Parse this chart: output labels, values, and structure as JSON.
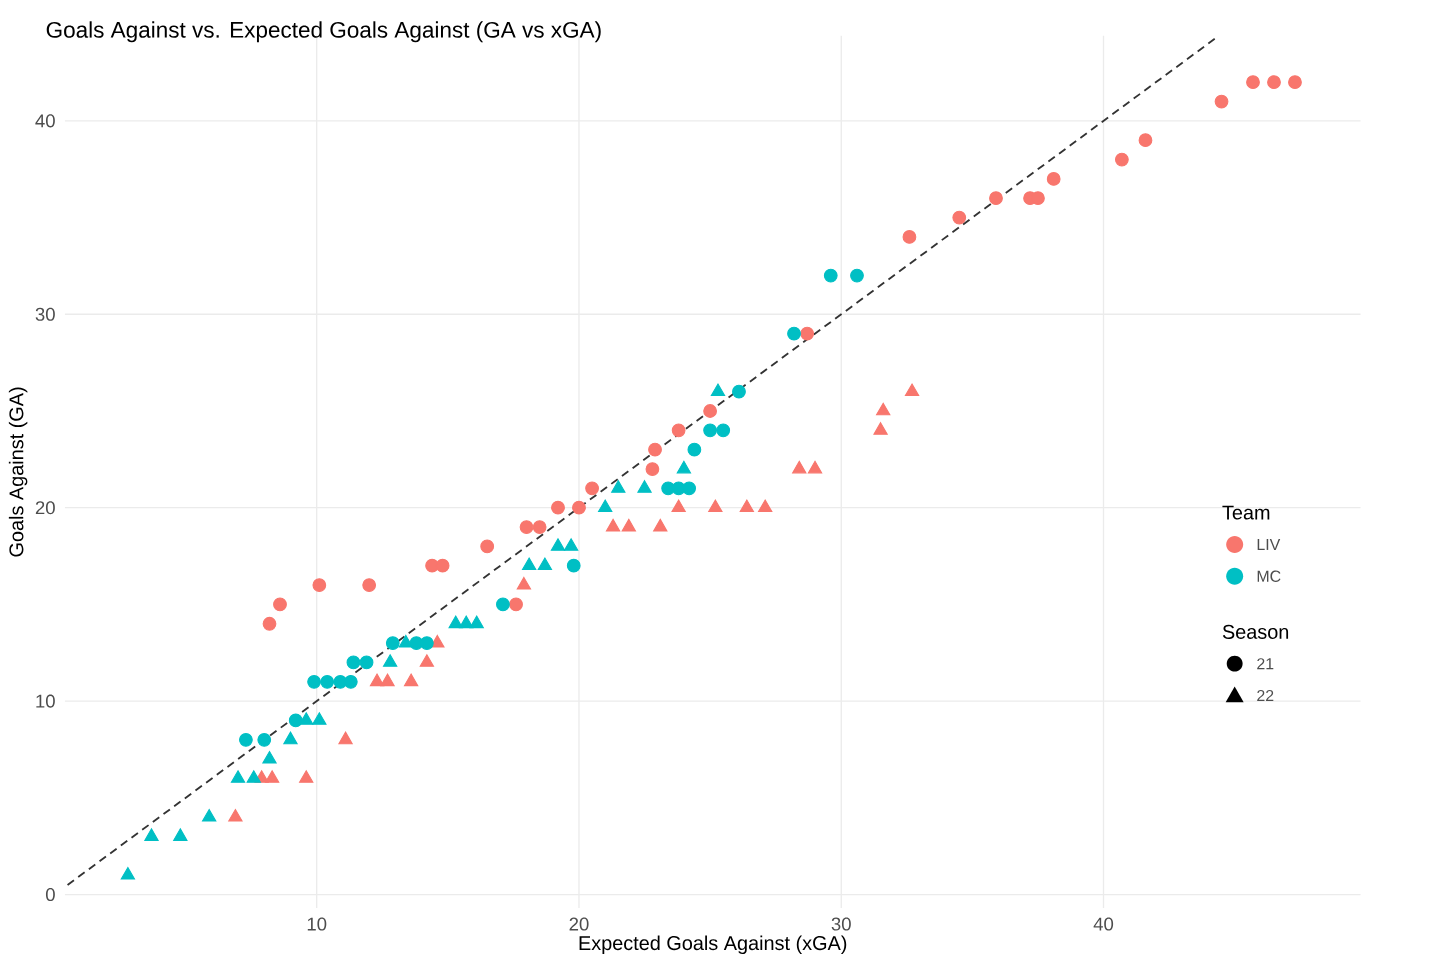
{
  "chart_data": {
    "type": "scatter",
    "title": "Goals Against vs. Expected Goals Against (GA vs xGA)",
    "xlabel": "Expected Goals Against (xGA)",
    "ylabel": "Goals Against (GA)",
    "legend_title": "Team",
    "legend": "right",
    "grid": true,
    "xlim": [
      0.4,
      49.8
    ],
    "ylim": [
      -0.7,
      44.4
    ],
    "xticks": [
      10,
      20,
      30,
      40
    ],
    "yticks": [
      0,
      10,
      20,
      30,
      40
    ],
    "annotations": [
      "Season",
      "21",
      "22"
    ],
    "series": [
      {
        "name": "LIV",
        "color": "#f8766d",
        "marker": "circle",
        "x": [
          8.2,
          8.6,
          10.1,
          12.0,
          14.4,
          14.8,
          16.5,
          17.6,
          18.0,
          18.5,
          19.2,
          20.0,
          20.5,
          22.8,
          22.9,
          23.8,
          25.0,
          28.7,
          32.6,
          34.5,
          35.9,
          37.2,
          37.5,
          38.1,
          40.7,
          41.6,
          44.5,
          45.7,
          46.5,
          47.3
        ],
        "values": [
          14,
          15,
          16,
          16,
          17,
          17,
          18,
          15,
          19,
          19,
          20,
          20,
          21,
          22,
          23,
          24,
          25,
          29,
          34,
          35,
          36,
          36,
          36,
          37,
          38,
          39,
          41,
          42,
          42,
          42
        ]
      },
      {
        "color": "#f8766d",
        "marker": "triangle",
        "x": [
          6.9,
          7.9,
          8.3,
          9.6,
          11.1,
          12.3,
          12.7,
          13.6,
          14.2,
          14.6,
          17.9,
          21.3,
          21.9,
          23.1,
          23.8,
          25.2,
          26.4,
          27.1,
          28.4,
          29.0,
          31.5,
          31.6,
          32.7
        ],
        "values": [
          4,
          6,
          6,
          6,
          8,
          11,
          11,
          11,
          12,
          13,
          16,
          19,
          19,
          19,
          20,
          20,
          20,
          20,
          22,
          22,
          24,
          25,
          26
        ]
      },
      {
        "name": "MC",
        "color": "#00bfc4",
        "marker": "circle",
        "x": [
          7.3,
          8.0,
          9.2,
          9.9,
          10.4,
          10.9,
          11.3,
          11.4,
          11.9,
          12.9,
          13.8,
          14.2,
          17.1,
          19.8,
          23.4,
          23.8,
          24.2,
          24.4,
          25.0,
          25.5,
          26.1,
          28.2,
          29.6,
          30.6
        ],
        "values": [
          8,
          8,
          9,
          11,
          11,
          11,
          11,
          12,
          12,
          13,
          13,
          13,
          15,
          17,
          21,
          21,
          21,
          23,
          24,
          24,
          26,
          29,
          32,
          32
        ]
      },
      {
        "color": "#00bfc4",
        "marker": "triangle",
        "x": [
          2.8,
          3.7,
          4.8,
          5.9,
          7.0,
          7.6,
          8.2,
          9.0,
          9.6,
          10.1,
          12.8,
          13.4,
          15.3,
          15.7,
          16.1,
          18.1,
          18.7,
          19.2,
          19.7,
          21.0,
          21.5,
          22.5,
          24.0,
          25.3
        ],
        "values": [
          1,
          3,
          3,
          4,
          6,
          6,
          7,
          8,
          9,
          9,
          12,
          13,
          14,
          14,
          14,
          17,
          17,
          18,
          18,
          20,
          21,
          21,
          22,
          26
        ]
      },
      {
        "type": "line",
        "color": "#333333",
        "line_style": "dashed",
        "marker": "none",
        "x": [
          0.5,
          44.3
        ],
        "values": [
          0.5,
          44.3
        ]
      }
    ]
  }
}
